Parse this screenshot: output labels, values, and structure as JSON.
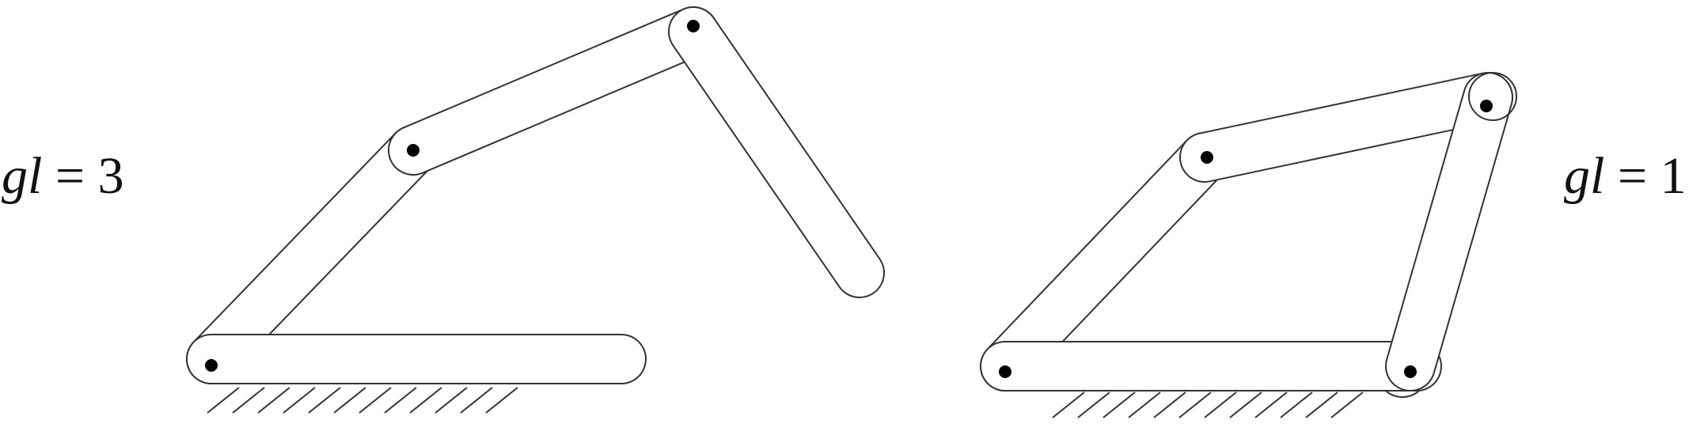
{
  "colors": {
    "stroke": "#333333",
    "fill": "#ffffff",
    "joint": "#000000",
    "text": "#111111"
  },
  "labels": {
    "left": {
      "var": "gl",
      "op": " = ",
      "value": "3"
    },
    "right": {
      "var": "gl",
      "op": " = ",
      "value": "1"
    }
  }
}
